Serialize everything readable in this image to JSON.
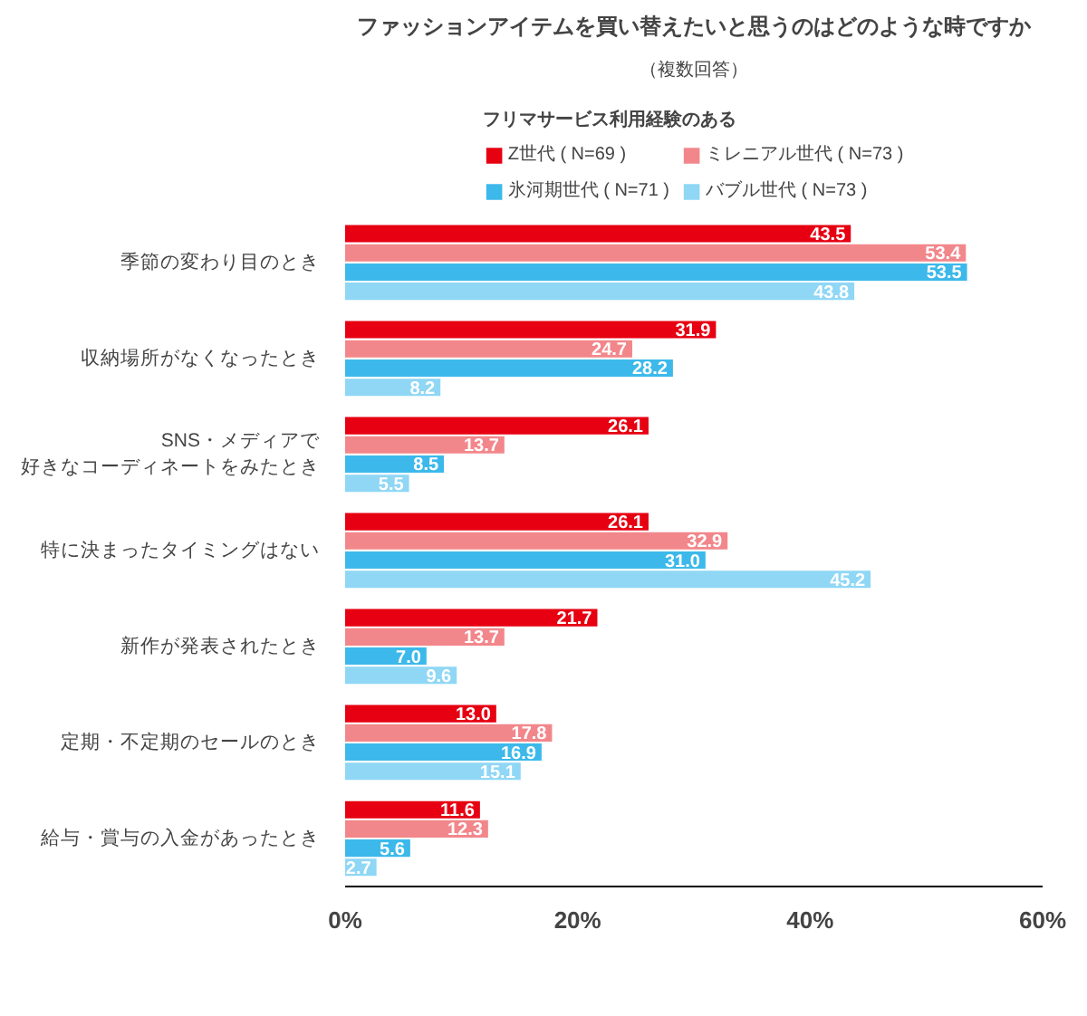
{
  "chart_data": {
    "type": "bar",
    "orientation": "horizontal",
    "title": "ファッションアイテムを買い替えたいと思うのはどのような時ですか",
    "subtitle": "（複数回答）",
    "legend_title": "フリマサービス利用経験のある",
    "legend": "top",
    "categories": [
      "季節の変わり目のとき",
      "収納場所がなくなったとき",
      "SNS・メディアで好きなコーディネートをみたとき",
      "特に決まったタイミングはない",
      "新作が発表されたとき",
      "定期・不定期のセールのとき",
      "給与・賞与の入金があったとき"
    ],
    "series": [
      {
        "name": "Z世代 ( N=69 )",
        "color": "#e60012",
        "values": [
          43.5,
          31.9,
          26.1,
          26.1,
          21.7,
          13.0,
          11.6
        ],
        "value_labels": [
          "43.5",
          "31.9",
          "26.1",
          "26.1",
          "21.7",
          "13.0",
          "11.6"
        ]
      },
      {
        "name": "ミレニアル世代 ( N=73 )",
        "color": "#f2878b",
        "values": [
          53.4,
          24.7,
          13.7,
          32.9,
          13.7,
          17.8,
          12.3
        ],
        "value_labels": [
          "53.4",
          "24.7",
          "13.7",
          "32.9",
          "13.7",
          "17.8",
          "12.3"
        ]
      },
      {
        "name": "氷河期世代 ( N=71 )",
        "color": "#3cb9ea",
        "values": [
          53.5,
          28.2,
          8.5,
          31.0,
          7.0,
          16.9,
          5.6
        ],
        "value_labels": [
          "53.5",
          "28.2",
          "8.5",
          "31.0",
          "7.0",
          "16.9",
          "5.6"
        ]
      },
      {
        "name": "バブル世代 ( N=73 )",
        "color": "#8fd7f5",
        "values": [
          43.8,
          8.2,
          5.5,
          45.2,
          9.6,
          15.1,
          2.7
        ],
        "value_labels": [
          "43.8",
          "8.2",
          "5.5",
          "45.2",
          "9.6",
          "15.1",
          "2.7"
        ]
      }
    ],
    "grid": false,
    "xlim": [
      0,
      60
    ],
    "xticks": [
      {
        "value": 0,
        "label": "0%"
      },
      {
        "value": 20,
        "label": "20%"
      },
      {
        "value": 40,
        "label": "40%"
      },
      {
        "value": 60,
        "label": "60%"
      }
    ]
  }
}
